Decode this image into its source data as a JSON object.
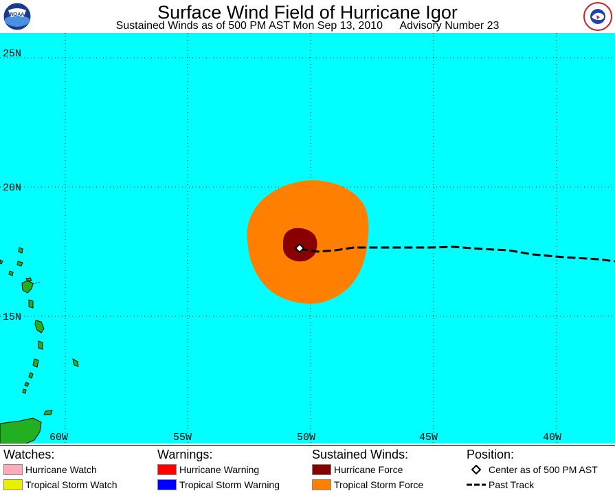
{
  "header": {
    "title": "Surface Wind Field of Hurricane Igor",
    "subtitle": "Sustained Winds as of 500 PM AST Mon Sep 13, 2010",
    "advisory": "Advisory Number 23",
    "left_logo_text": "NOAA",
    "right_logo_text": "NATIONAL WEATHER SERVICE"
  },
  "map": {
    "ocean_color": "#00FFFF",
    "land_color": "#22B022",
    "lat_labels": [
      "25N",
      "20N",
      "15N"
    ],
    "lon_labels": [
      "60W",
      "55W",
      "50W",
      "45W",
      "40W"
    ],
    "storm_center": {
      "lon": -50.5,
      "lat": 17.8
    },
    "hurricane_force_color": "#880000",
    "tropical_storm_force_color": "#FF8000"
  },
  "legend": {
    "watches": {
      "title": "Watches:",
      "items": [
        {
          "label": "Hurricane Watch",
          "color": "#FFAABB"
        },
        {
          "label": "Tropical Storm Watch",
          "color": "#E8F000"
        }
      ]
    },
    "warnings": {
      "title": "Warnings:",
      "items": [
        {
          "label": "Hurricane Warning",
          "color": "#FF0000"
        },
        {
          "label": "Tropical Storm Warning",
          "color": "#0000FF"
        }
      ]
    },
    "winds": {
      "title": "Sustained Winds:",
      "items": [
        {
          "label": "Hurricane Force",
          "color": "#880000"
        },
        {
          "label": "Tropical Storm Force",
          "color": "#FF8000"
        }
      ]
    },
    "position": {
      "title": "Position:",
      "center_label": "Center as of 500 PM AST",
      "track_label": "Past Track"
    }
  }
}
